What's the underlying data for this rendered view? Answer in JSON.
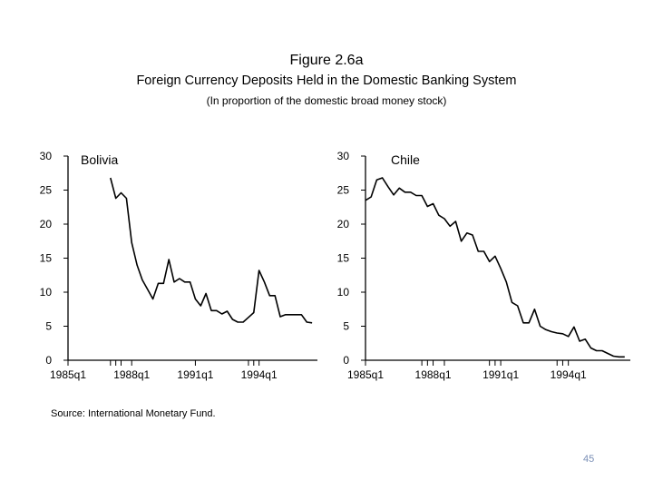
{
  "figure": {
    "title": "Figure 2.6a",
    "subtitle": "Foreign Currency Deposits Held in the Domestic Banking System",
    "note": "(In proportion of the domestic broad money stock)"
  },
  "source": "Source: International Monetary Fund.",
  "page_number": "45",
  "colors": {
    "line": "#000000",
    "page_number": "#7a8fb6"
  },
  "chart_data": [
    {
      "type": "line",
      "panel": "Bolivia",
      "xlabel": "",
      "ylabel": "",
      "ylim": [
        0,
        30
      ],
      "yticks": [
        0,
        5,
        10,
        15,
        20,
        25,
        30
      ],
      "yticklabels": [
        "0",
        "5",
        "10",
        "15",
        "20",
        "25",
        "30"
      ],
      "xlim": [
        1985.0,
        1996.75
      ],
      "xticks": [
        1985.0,
        1988.0,
        1991.0,
        1994.0
      ],
      "xticklabels": [
        "1985q1",
        "1988q1",
        "1991q1",
        "1994q1"
      ],
      "x_minor_ticks": [
        1987.0,
        1987.25,
        1987.5,
        1993.5,
        1993.75
      ],
      "series": [
        {
          "name": "Bolivia",
          "x": [
            1987.0,
            1987.25,
            1987.5,
            1987.75,
            1988.0,
            1988.25,
            1988.5,
            1988.75,
            1989.0,
            1989.25,
            1989.5,
            1989.75,
            1990.0,
            1990.25,
            1990.5,
            1990.75,
            1991.0,
            1991.25,
            1991.5,
            1991.75,
            1992.0,
            1992.25,
            1992.5,
            1992.75,
            1993.0,
            1993.25,
            1993.5,
            1993.75,
            1994.0,
            1994.25,
            1994.5,
            1994.75,
            1995.0,
            1995.25,
            1995.5,
            1995.75,
            1996.0,
            1996.25,
            1996.5
          ],
          "values": [
            26.8,
            23.8,
            24.6,
            23.8,
            17.3,
            14.0,
            11.8,
            10.4,
            9.0,
            11.3,
            11.3,
            14.8,
            11.5,
            12.0,
            11.5,
            11.5,
            9.0,
            8.0,
            9.8,
            7.3,
            7.3,
            6.8,
            7.2,
            6.0,
            5.6,
            5.6,
            6.3,
            7.0,
            13.2,
            11.5,
            9.5,
            9.5,
            6.4,
            6.7,
            6.7,
            6.7,
            6.7,
            5.6,
            5.5
          ]
        }
      ]
    },
    {
      "type": "line",
      "panel": "Chile",
      "xlabel": "",
      "ylabel": "",
      "ylim": [
        0,
        30
      ],
      "yticks": [
        0,
        5,
        10,
        15,
        20,
        25,
        30
      ],
      "yticklabels": [
        "0",
        "5",
        "10",
        "15",
        "20",
        "25",
        "30"
      ],
      "xlim": [
        1985.0,
        1996.75
      ],
      "xticks": [
        1985.0,
        1988.0,
        1991.0,
        1994.0
      ],
      "xticklabels": [
        "1985q1",
        "1988q1",
        "1991q1",
        "1994q1"
      ],
      "x_minor_ticks": [
        1987.5,
        1987.75,
        1988.5,
        1990.5,
        1990.75,
        1993.5,
        1993.75
      ],
      "series": [
        {
          "name": "Chile",
          "x": [
            1985.0,
            1985.25,
            1985.5,
            1985.75,
            1986.0,
            1986.25,
            1986.5,
            1986.75,
            1987.0,
            1987.25,
            1987.5,
            1987.75,
            1988.0,
            1988.25,
            1988.5,
            1988.75,
            1989.0,
            1989.25,
            1989.5,
            1989.75,
            1990.0,
            1990.25,
            1990.5,
            1990.75,
            1991.0,
            1991.25,
            1991.5,
            1991.75,
            1992.0,
            1992.25,
            1992.5,
            1992.75,
            1993.0,
            1993.25,
            1993.5,
            1993.75,
            1994.0,
            1994.25,
            1994.5,
            1994.75,
            1995.0,
            1995.25,
            1995.5,
            1995.75,
            1996.0,
            1996.25,
            1996.5
          ],
          "values": [
            23.5,
            24.0,
            26.5,
            26.8,
            25.5,
            24.3,
            25.3,
            24.7,
            24.7,
            24.2,
            24.2,
            22.6,
            23.0,
            21.3,
            20.8,
            19.7,
            20.4,
            17.5,
            18.7,
            18.4,
            16.0,
            16.0,
            14.5,
            15.3,
            13.5,
            11.5,
            8.5,
            8.0,
            5.5,
            5.5,
            7.5,
            5.0,
            4.5,
            4.2,
            4.0,
            3.9,
            3.5,
            4.9,
            2.8,
            3.1,
            1.8,
            1.4,
            1.4,
            1.0,
            0.6,
            0.5,
            0.5
          ]
        }
      ]
    }
  ]
}
